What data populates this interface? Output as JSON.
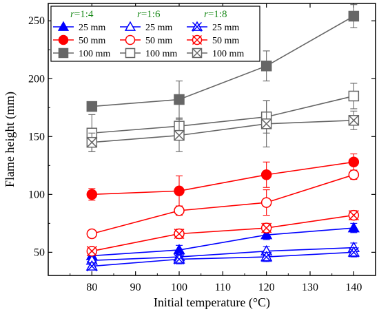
{
  "chart_data": {
    "type": "line",
    "title": "",
    "xlabel": "Initial temperature (°C)",
    "ylabel": "Flame height (mm)",
    "xlim": [
      70,
      145
    ],
    "ylim": [
      30,
      265
    ],
    "xticks": [
      80,
      90,
      100,
      110,
      120,
      130,
      140
    ],
    "yticks": [
      50,
      100,
      150,
      200,
      250
    ],
    "x": [
      80,
      100,
      120,
      140
    ],
    "legend_groups": [
      {
        "prefix": "r",
        "ratio": "=1:4"
      },
      {
        "prefix": "r",
        "ratio": "=1:6"
      },
      {
        "prefix": "r",
        "ratio": "=1:8"
      }
    ],
    "legend_placement": "top-left",
    "series": [
      {
        "name": "25 mm",
        "group": 0,
        "color": "#0000ff",
        "marker": "triangle",
        "fill": "filled",
        "values": [
          47,
          52,
          65,
          71
        ],
        "errors": [
          3,
          4,
          4,
          4
        ]
      },
      {
        "name": "50 mm",
        "group": 0,
        "color": "#ff0000",
        "marker": "circle",
        "fill": "filled",
        "values": [
          100,
          103,
          117,
          128
        ],
        "errors": [
          5,
          13,
          11,
          7
        ]
      },
      {
        "name": "100 mm",
        "group": 0,
        "color": "#666666",
        "marker": "square",
        "fill": "filled",
        "values": [
          176,
          182,
          211,
          254
        ],
        "errors": [
          4,
          16,
          13,
          10
        ]
      },
      {
        "name": "25 mm",
        "group": 1,
        "color": "#0000ff",
        "marker": "triangle",
        "fill": "open",
        "values": [
          43,
          46,
          51,
          54
        ],
        "errors": [
          3,
          4,
          4,
          4
        ]
      },
      {
        "name": "50 mm",
        "group": 1,
        "color": "#ff0000",
        "marker": "circle",
        "fill": "open",
        "values": [
          66,
          86,
          93,
          117
        ],
        "errors": [
          3,
          4,
          11,
          4
        ]
      },
      {
        "name": "100 mm",
        "group": 1,
        "color": "#666666",
        "marker": "square",
        "fill": "open",
        "values": [
          153,
          159,
          167,
          185
        ],
        "errors": [
          16,
          7,
          14,
          11
        ]
      },
      {
        "name": "25 mm",
        "group": 2,
        "color": "#0000ff",
        "marker": "triangle-x",
        "fill": "open",
        "values": [
          38,
          44,
          46,
          50
        ],
        "errors": [
          3,
          4,
          4,
          4
        ]
      },
      {
        "name": "50 mm",
        "group": 2,
        "color": "#ff0000",
        "marker": "circle-x",
        "fill": "open",
        "values": [
          51,
          66,
          71,
          82
        ],
        "errors": [
          3,
          4,
          4,
          4
        ]
      },
      {
        "name": "100 mm",
        "group": 2,
        "color": "#666666",
        "marker": "square-x",
        "fill": "open",
        "values": [
          145,
          151,
          161,
          164
        ],
        "errors": [
          8,
          14,
          20,
          8
        ]
      }
    ]
  }
}
